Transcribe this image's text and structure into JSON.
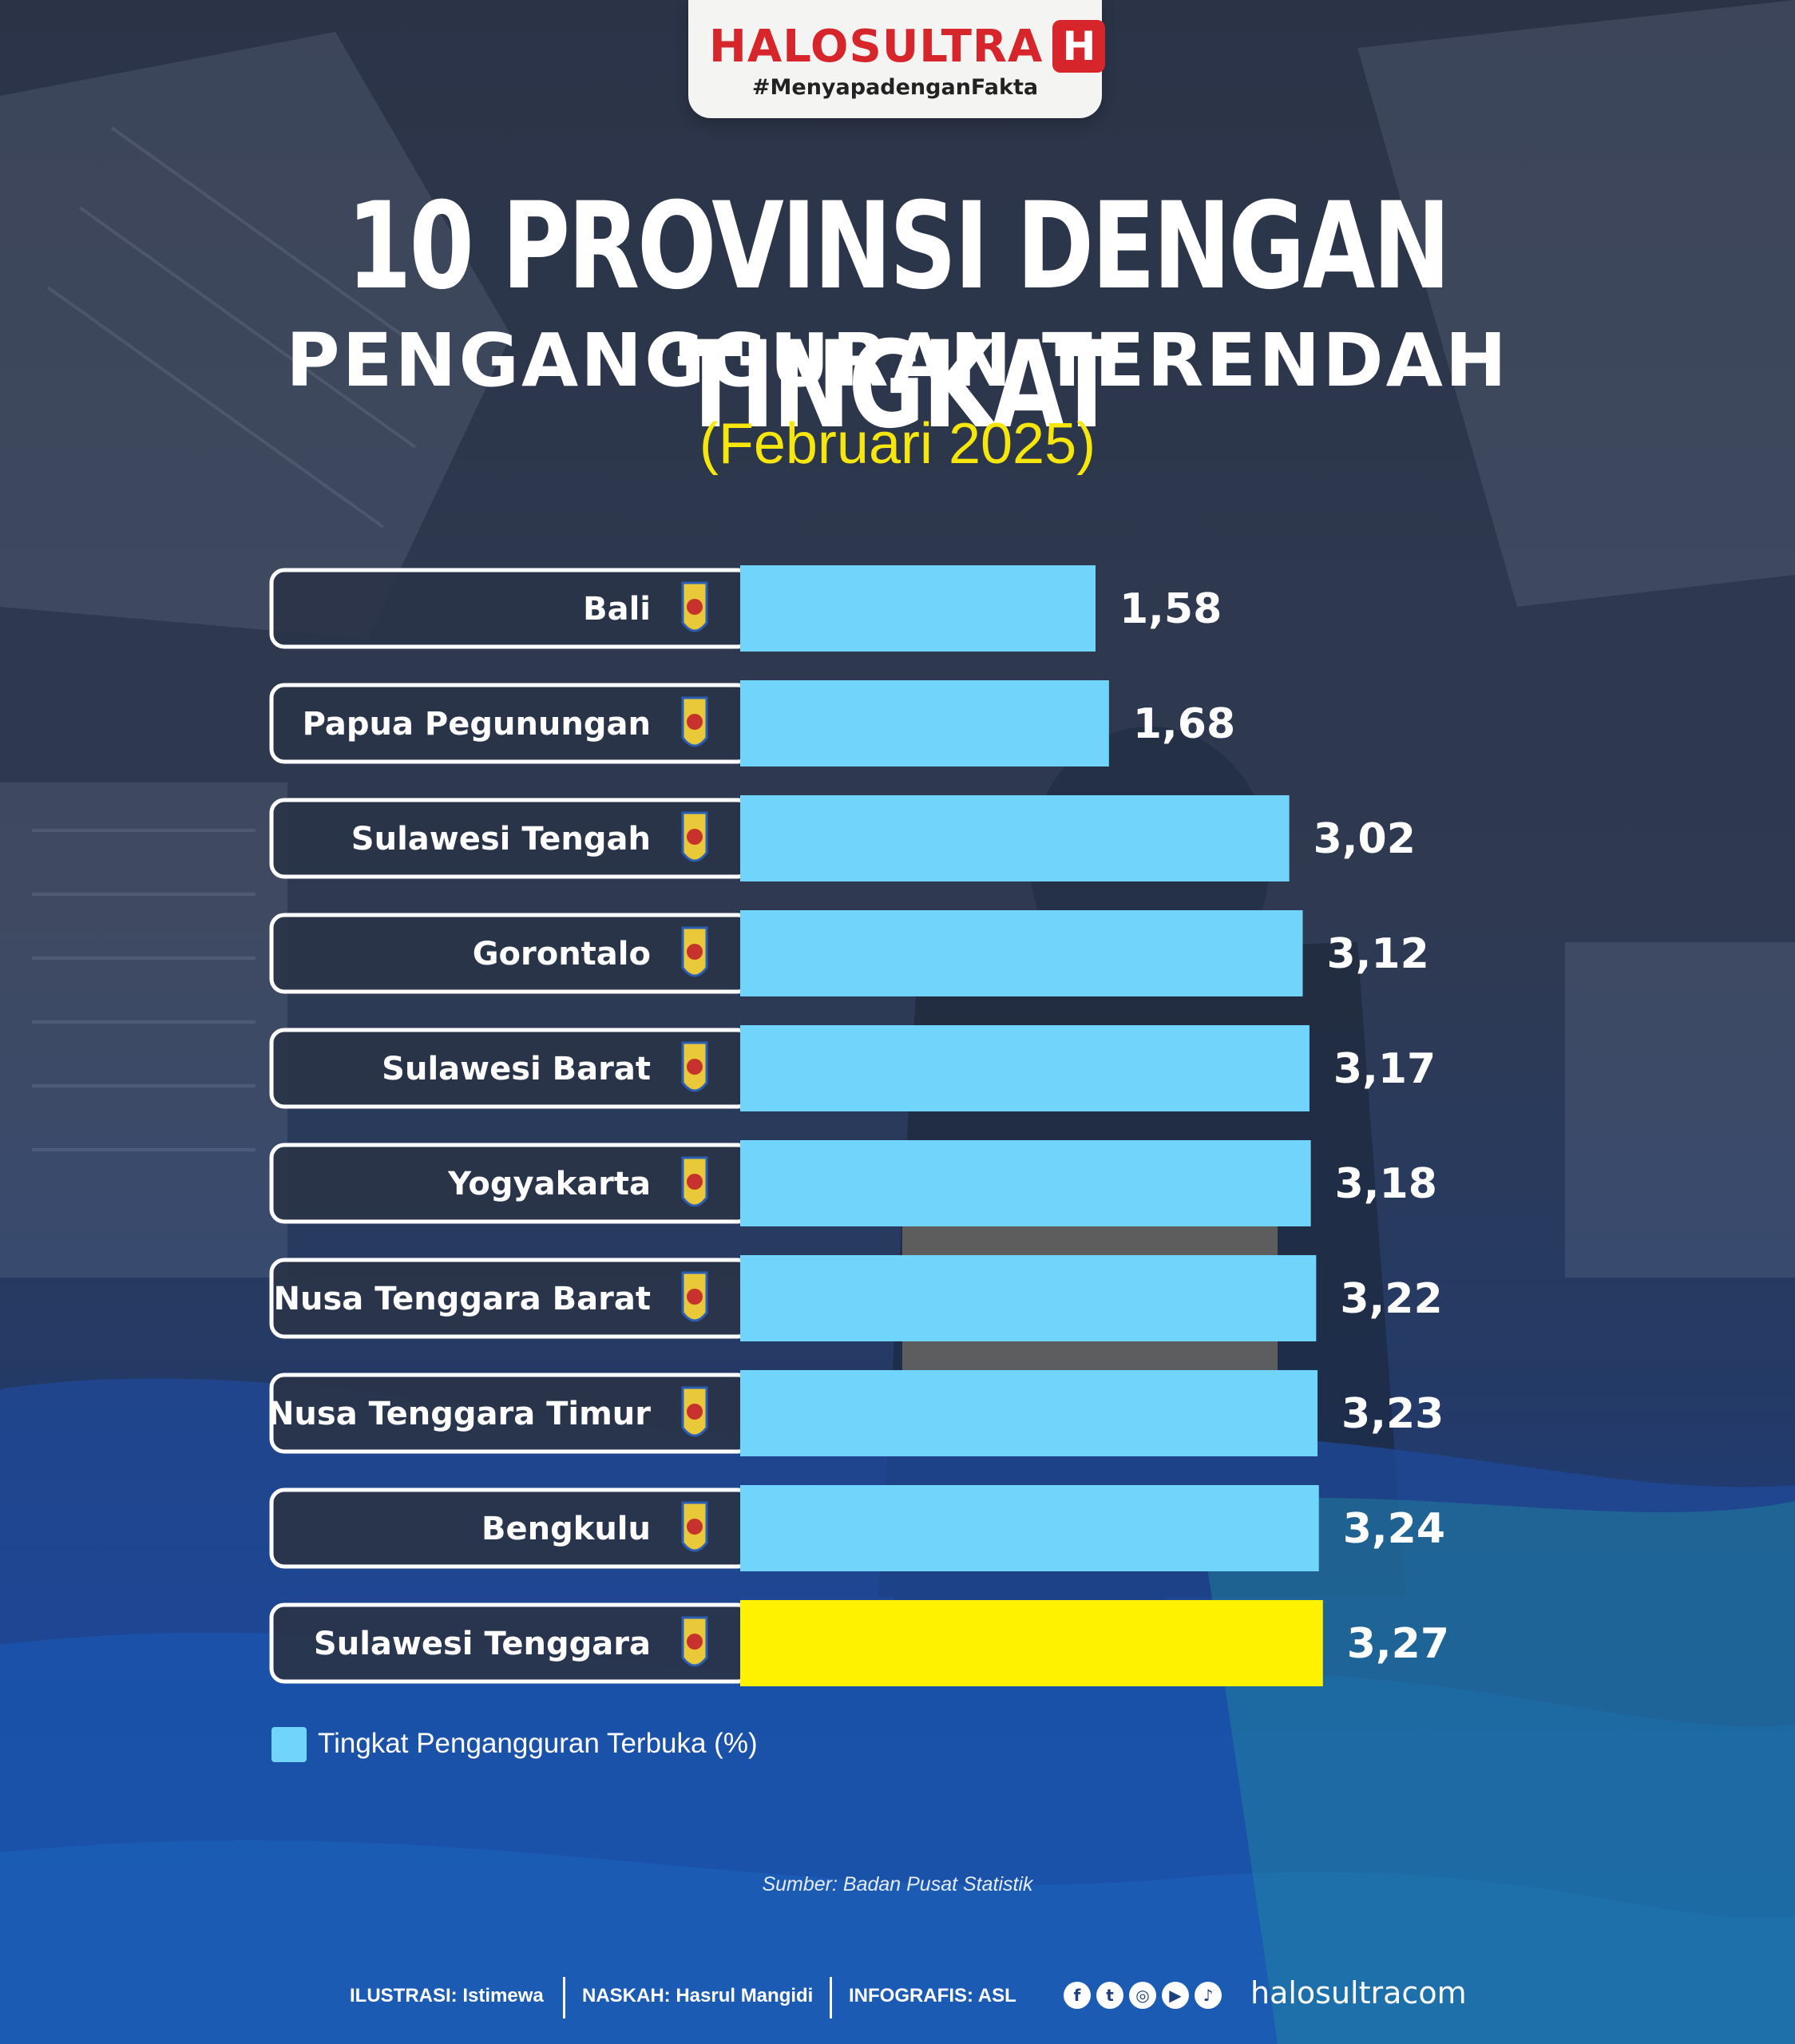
{
  "brand": {
    "logo_text": "HALOSULTRA",
    "logo_mark": "H",
    "tagline": "#MenyapadenganFakta"
  },
  "title": {
    "line1": "10 PROVINSI DENGAN TINGKAT",
    "line2": "PENGANGGURAN TERENDAH",
    "line3": "(Februari 2025)"
  },
  "colors": {
    "bar": "#70d4fb",
    "highlight_bar": "#fff200",
    "title_accent": "#f6e60c"
  },
  "chart_data": {
    "type": "bar",
    "orientation": "horizontal",
    "categories": [
      "Bali",
      "Papua Pegunungan",
      "Sulawesi Tengah",
      "Gorontalo",
      "Sulawesi Barat",
      "Yogyakarta",
      "Nusa Tenggara Barat",
      "Nusa Tenggara Timur",
      "Bengkulu",
      "Sulawesi Tenggara"
    ],
    "values": [
      1.58,
      1.68,
      3.02,
      3.12,
      3.17,
      3.18,
      3.22,
      3.23,
      3.24,
      3.27
    ],
    "value_labels": [
      "1,58",
      "1,68",
      "3,02",
      "3,12",
      "3,17",
      "3,18",
      "3,22",
      "3,23",
      "3,24",
      "3,27"
    ],
    "highlight": "Sulawesi Tenggara",
    "legend": "Tingkat Pengangguran Terbuka (%)",
    "legend_position": "bottom-left",
    "grid": false
  },
  "source": "Sumber: Badan Pusat Statistik",
  "footer": {
    "ilustrasi": "ILUSTRASI: Istimewa",
    "naskah": "NASKAH: Hasrul Mangidi",
    "infografis": "INFOGRAFIS: ASL",
    "social_icons": [
      "facebook-icon",
      "twitter-icon",
      "instagram-icon",
      "youtube-icon",
      "tiktok-icon"
    ],
    "website": "halosultracom"
  }
}
